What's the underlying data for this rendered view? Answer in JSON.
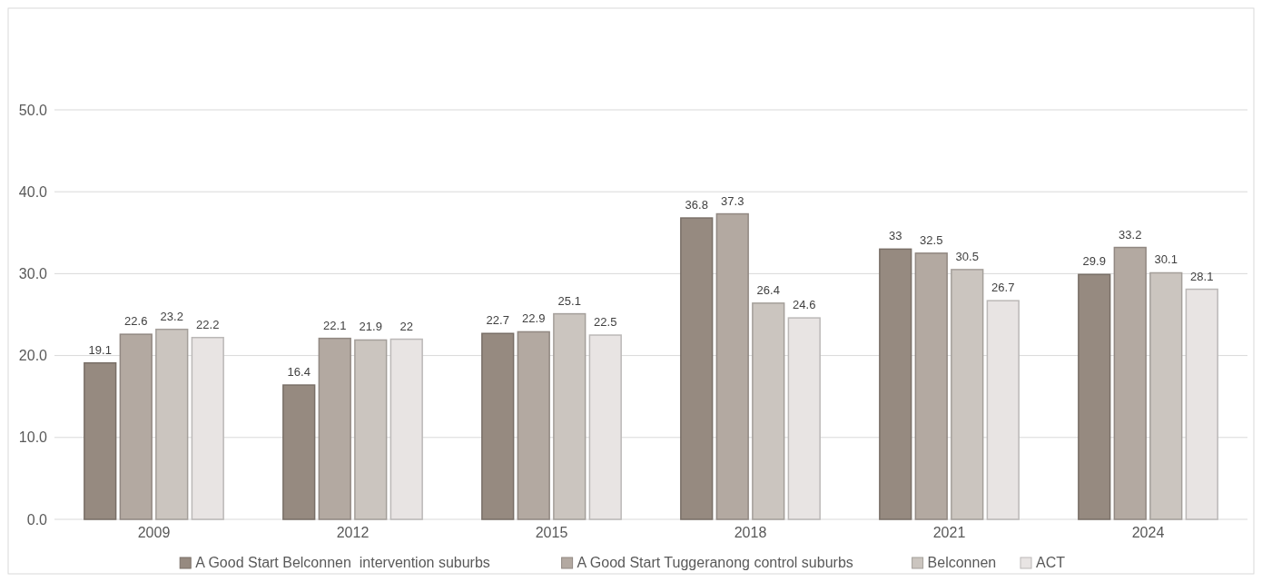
{
  "chart_data": {
    "type": "bar",
    "categories": [
      "2009",
      "2012",
      "2015",
      "2018",
      "2021",
      "2024"
    ],
    "series": [
      {
        "name": "A Good Start Belconnen  intervention suburbs",
        "color": "#968a80",
        "values": [
          19.1,
          16.4,
          22.7,
          36.8,
          33,
          29.9
        ]
      },
      {
        "name": "A Good Start Tuggeranong control suburbs",
        "color": "#b3a9a1",
        "values": [
          22.6,
          22.1,
          22.9,
          37.3,
          32.5,
          33.2
        ]
      },
      {
        "name": "Belconnen",
        "color": "#cbc5bf",
        "values": [
          23.2,
          21.9,
          25.1,
          26.4,
          30.5,
          30.1
        ]
      },
      {
        "name": "ACT",
        "color": "#e8e4e3",
        "values": [
          22.2,
          22,
          22.5,
          24.6,
          26.7,
          28.1
        ]
      }
    ],
    "ylim": [
      0,
      50
    ],
    "yticks": [
      {
        "value": 0,
        "label": "0.0"
      },
      {
        "value": 10,
        "label": "10.0"
      },
      {
        "value": 20,
        "label": "20.0"
      },
      {
        "value": 30,
        "label": "30.0"
      },
      {
        "value": 40,
        "label": "40.0"
      },
      {
        "value": 50,
        "label": "50.0"
      }
    ],
    "grid": "y",
    "legend": "bottom",
    "data_labels": true
  }
}
